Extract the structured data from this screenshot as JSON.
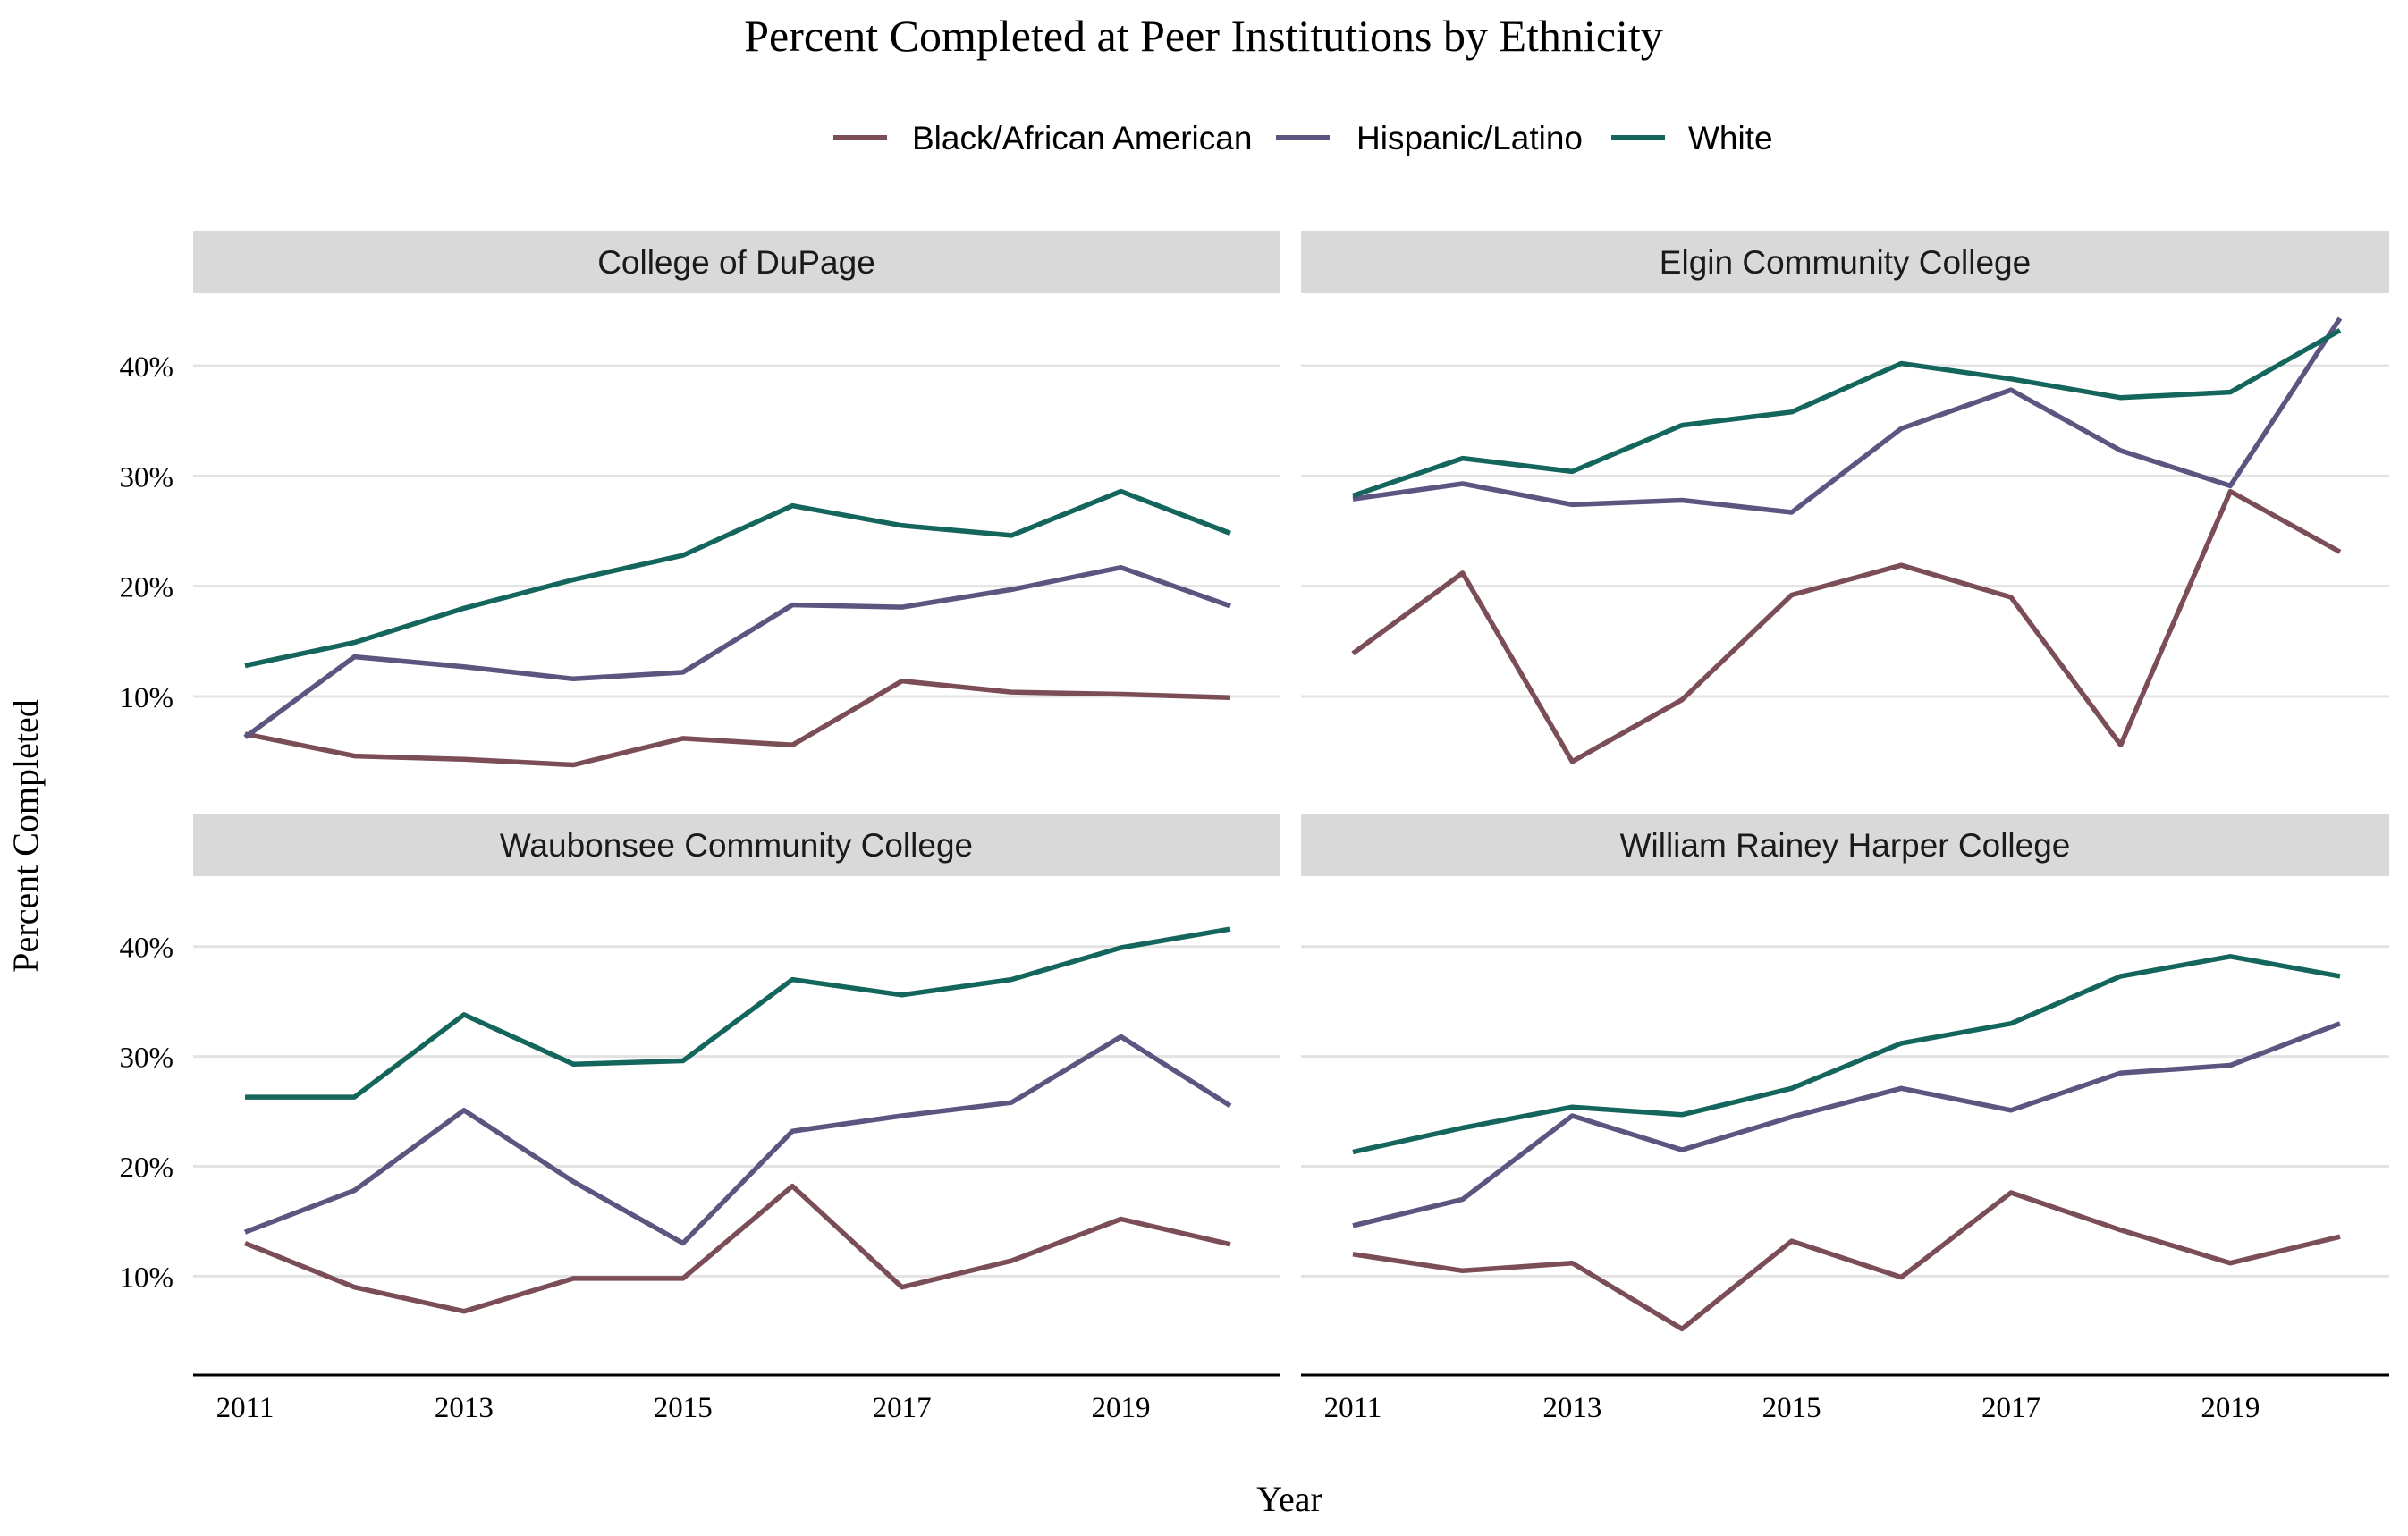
{
  "chart_data": {
    "type": "line",
    "title": "Percent Completed at Peer Institutions by Ethnicity",
    "xlabel": "Year",
    "ylabel": "Percent Completed",
    "legend_position": "top",
    "grid": "horizontal-major",
    "x_ticks": [
      2011,
      2013,
      2015,
      2017,
      2019
    ],
    "x_range": [
      2011,
      2020
    ],
    "y_ticks": [
      10,
      20,
      30,
      40
    ],
    "y_tick_labels": [
      "10%",
      "20%",
      "30%",
      "40%"
    ],
    "y_range": [
      1,
      46
    ],
    "x": [
      2011,
      2012,
      2013,
      2014,
      2015,
      2016,
      2017,
      2018,
      2019,
      2020
    ],
    "series_styles": [
      {
        "name": "Black/African American",
        "color": "#7a4d57"
      },
      {
        "name": "Hispanic/Latino",
        "color": "#5b5580"
      },
      {
        "name": "White",
        "color": "#14665c"
      }
    ],
    "panels": [
      {
        "title": "College of DuPage",
        "series": [
          {
            "name": "Black/African American",
            "values": [
              6.6,
              4.6,
              4.3,
              3.8,
              6.2,
              5.6,
              11.4,
              10.4,
              10.2,
              9.9
            ]
          },
          {
            "name": "Hispanic/Latino",
            "values": [
              6.3,
              13.6,
              12.7,
              11.6,
              12.2,
              18.3,
              18.1,
              19.7,
              21.7,
              18.2
            ]
          },
          {
            "name": "White",
            "values": [
              12.8,
              14.9,
              18.0,
              20.6,
              22.8,
              27.3,
              25.5,
              24.6,
              28.6,
              24.8
            ]
          }
        ]
      },
      {
        "title": "Elgin Community College",
        "series": [
          {
            "name": "Black/African American",
            "values": [
              13.9,
              21.2,
              4.1,
              9.7,
              19.2,
              21.9,
              19.0,
              5.6,
              28.6,
              23.1
            ]
          },
          {
            "name": "Hispanic/Latino",
            "values": [
              27.9,
              29.3,
              27.4,
              27.8,
              26.7,
              34.3,
              37.8,
              32.3,
              29.1,
              44.3
            ]
          },
          {
            "name": "White",
            "values": [
              28.2,
              31.6,
              30.4,
              34.6,
              35.8,
              40.2,
              38.8,
              37.1,
              37.6,
              43.2
            ]
          }
        ]
      },
      {
        "title": "Waubonsee Community College",
        "series": [
          {
            "name": "Black/African American",
            "values": [
              13.0,
              9.0,
              6.8,
              9.8,
              9.8,
              18.2,
              9.0,
              11.4,
              15.2,
              12.9
            ]
          },
          {
            "name": "Hispanic/Latino",
            "values": [
              14.0,
              17.8,
              25.1,
              18.6,
              13.0,
              23.2,
              24.6,
              25.8,
              31.8,
              25.5
            ]
          },
          {
            "name": "White",
            "values": [
              26.3,
              26.3,
              33.8,
              29.3,
              29.6,
              37.0,
              35.6,
              37.0,
              39.9,
              41.6
            ]
          }
        ]
      },
      {
        "title": "William Rainey Harper College",
        "series": [
          {
            "name": "Black/African American",
            "values": [
              12.0,
              10.5,
              11.2,
              5.2,
              13.2,
              9.9,
              17.6,
              14.2,
              11.2,
              13.6
            ]
          },
          {
            "name": "Hispanic/Latino",
            "values": [
              14.6,
              17.0,
              24.6,
              21.5,
              24.5,
              27.1,
              25.1,
              28.5,
              29.2,
              33.0
            ]
          },
          {
            "name": "White",
            "values": [
              21.3,
              23.5,
              25.4,
              24.7,
              27.1,
              31.2,
              33.0,
              37.3,
              39.1,
              37.3
            ]
          }
        ]
      }
    ]
  }
}
